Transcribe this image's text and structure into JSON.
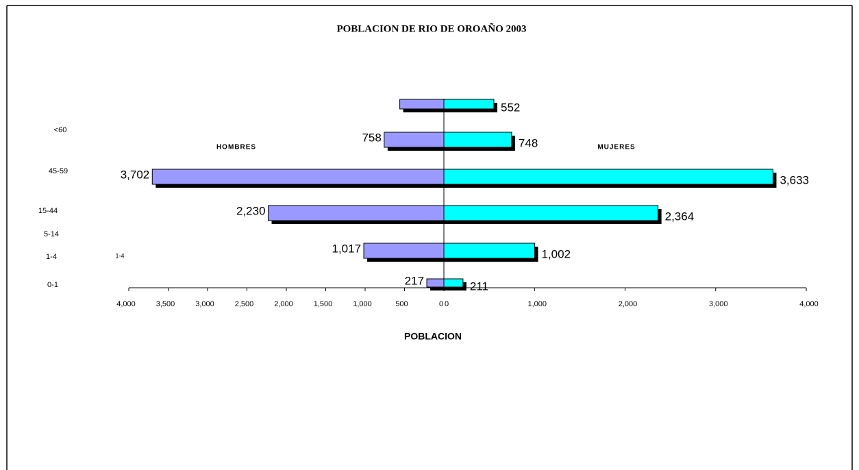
{
  "chart_data": {
    "type": "pyramid",
    "title": "POBLACION DE RIO DE OROAÑO 2003",
    "x_label": "POBLACION",
    "annotation": "1-4",
    "categories": [
      "<60",
      "45-59",
      "15-44",
      "5-14",
      "1-4",
      "0-1"
    ],
    "series": [
      {
        "name": "HOMBRES",
        "color": "#9999ff",
        "side": "left",
        "values": [
          560,
          758,
          3702,
          2230,
          1017,
          217
        ],
        "value_labels": [
          null,
          "758",
          "3,702",
          "2,230",
          "1,017",
          "217"
        ]
      },
      {
        "name": "MUJERES",
        "color": "#00ffff",
        "side": "right",
        "values": [
          552,
          748,
          3633,
          2364,
          1002,
          211
        ],
        "value_labels": [
          "552",
          "748",
          "3,633",
          "2,364",
          "1,002",
          "211"
        ]
      }
    ],
    "xlim": [
      0,
      4000
    ],
    "left_xticks": [
      {
        "value": 4000,
        "label": "4,000"
      },
      {
        "value": 3500,
        "label": "3,500"
      },
      {
        "value": 3000,
        "label": "3,000"
      },
      {
        "value": 2500,
        "label": "2,500"
      },
      {
        "value": 2000,
        "label": "2,000"
      },
      {
        "value": 1500,
        "label": "1,500"
      },
      {
        "value": 1000,
        "label": "1,000"
      },
      500,
      0
    ],
    "right_xticks": [
      0,
      {
        "value": 1000,
        "label": "1,000"
      },
      {
        "value": 2000,
        "label": "2,000"
      },
      {
        "value": 3000,
        "label": "3,000"
      },
      {
        "value": 4000,
        "label": "4,000"
      }
    ]
  }
}
